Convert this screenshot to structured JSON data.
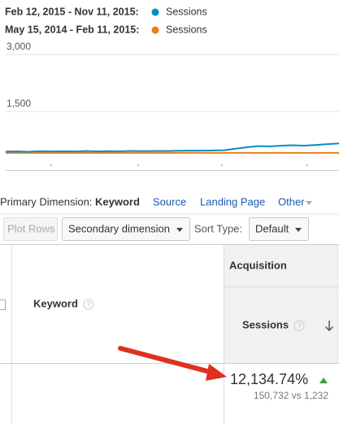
{
  "chart_data": {
    "type": "line",
    "series": [
      {
        "period": "Feb 12, 2015 - Nov 11, 2015:",
        "name": "Sessions",
        "color": "#058dc7",
        "values": [
          445,
          450,
          440,
          455,
          448,
          452,
          446,
          458,
          450,
          455,
          452,
          460,
          455,
          462,
          458,
          465,
          470,
          468,
          475,
          480,
          520,
          560,
          590,
          580,
          600,
          610,
          600,
          620,
          640,
          660
        ]
      },
      {
        "period": "May 15, 2014 - Feb 11, 2015:",
        "name": "Sessions",
        "color": "#ed7e17",
        "values": [
          410,
          410,
          410,
          410,
          410,
          410,
          410,
          410,
          410,
          410,
          410,
          410,
          410,
          410,
          410,
          410,
          410,
          410,
          410,
          410,
          410,
          410,
          410,
          410,
          410,
          410,
          410,
          410,
          410,
          410
        ]
      }
    ],
    "ylim": [
      0,
      3000
    ],
    "yticks": [
      {
        "value": 1500,
        "label": "1,500"
      },
      {
        "value": 3000,
        "label": "3,000"
      }
    ],
    "grid": true
  },
  "primary_dimension": {
    "label": "Primary Dimension:",
    "options": [
      "Keyword",
      "Source",
      "Landing Page",
      "Other"
    ]
  },
  "toolbar": {
    "plot_rows": "Plot Rows",
    "secondary": "Secondary dimension",
    "sort_label": "Sort Type:",
    "sort_value": "Default"
  },
  "help_icon": "?",
  "table": {
    "group_header": "Acquisition",
    "columns": [
      "Keyword",
      "Sessions"
    ],
    "rows": [
      {
        "change": "12,134.74%",
        "comparison": "150,732 vs 1,232"
      }
    ]
  }
}
